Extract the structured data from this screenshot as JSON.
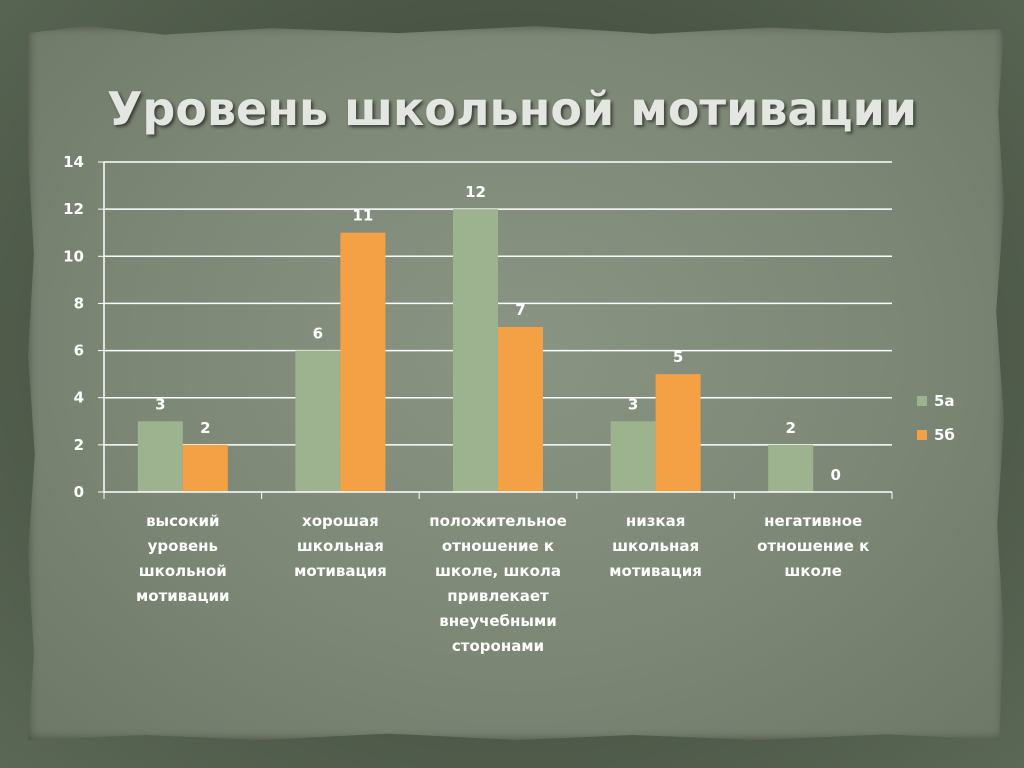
{
  "chart_data": {
    "type": "bar",
    "title": "Уровень школьной мотивации",
    "categories": [
      "высокий уровень школьной мотивации",
      "хорошая школьная мотивация",
      "положительное отношение к школе, школа привлекает внеучебными сторонами",
      "низкая школьная мотивация",
      "негативное отношение к школе"
    ],
    "category_lines": [
      [
        "высокий",
        "уровень",
        "школьной",
        "мотивации"
      ],
      [
        "хорошая",
        "школьная",
        "мотивация"
      ],
      [
        "положительное",
        "отношение к",
        "школе, школа",
        "привлекает",
        "внеучебными",
        "сторонами"
      ],
      [
        "низкая",
        "школьная",
        "мотивация"
      ],
      [
        "негативное",
        "отношение к",
        "школе"
      ]
    ],
    "series": [
      {
        "name": "5а",
        "values": [
          3,
          6,
          12,
          3,
          2
        ],
        "color": "#9db28f"
      },
      {
        "name": "5б",
        "values": [
          2,
          11,
          7,
          5,
          0
        ],
        "color": "#f4a044"
      }
    ],
    "yticks": [
      "0",
      "2",
      "4",
      "6",
      "8",
      "10",
      "12",
      "14"
    ],
    "ylim": [
      0,
      14
    ],
    "grid": true,
    "legend_position": "right"
  }
}
